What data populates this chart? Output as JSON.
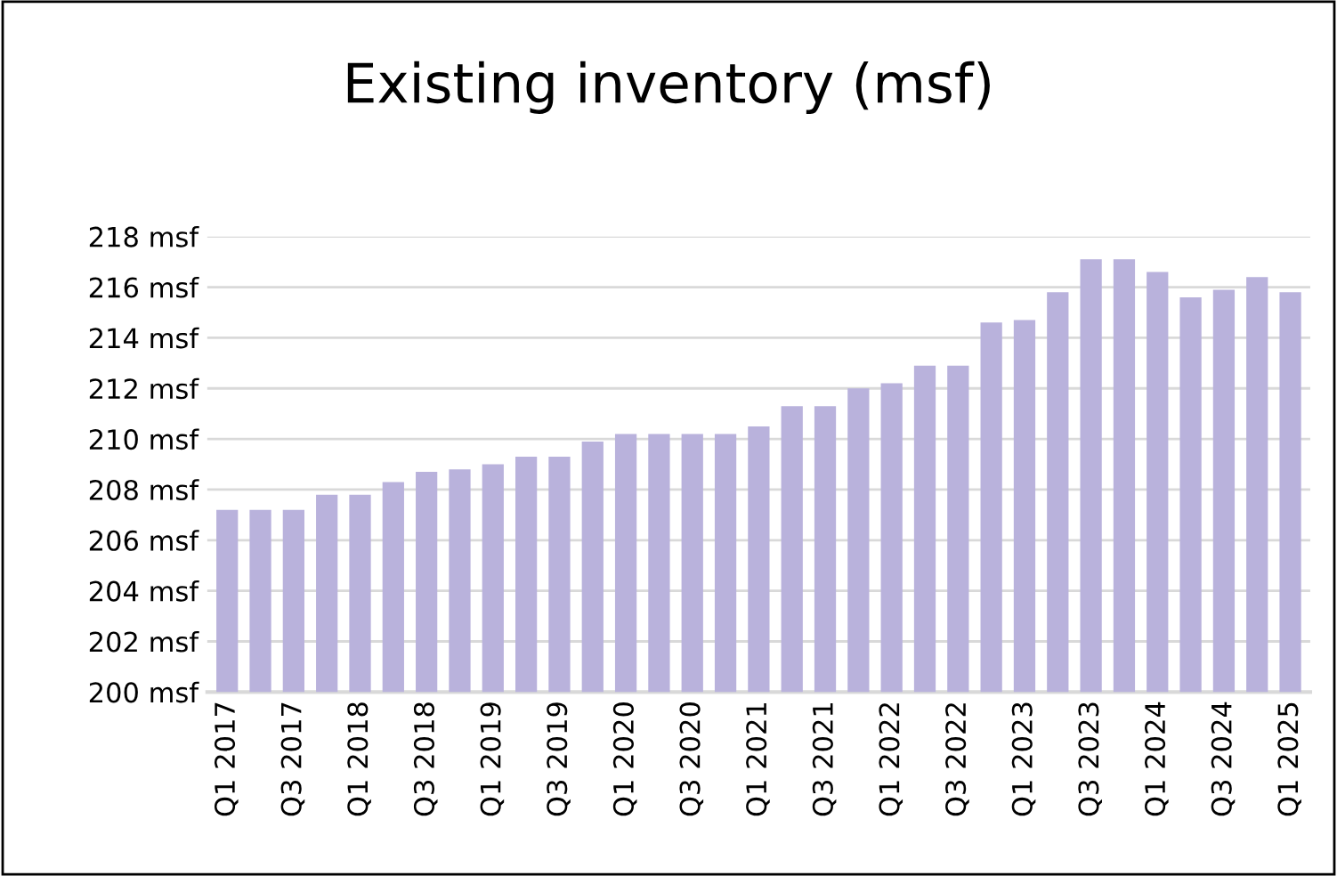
{
  "chart_data": {
    "type": "bar",
    "title": "Existing inventory (msf)",
    "categories": [
      "Q1 2017",
      null,
      "Q3 2017",
      null,
      "Q1 2018",
      null,
      "Q3 2018",
      null,
      "Q1 2019",
      null,
      "Q3 2019",
      null,
      "Q1 2020",
      null,
      "Q3 2020",
      null,
      "Q1 2021",
      null,
      "Q3 2021",
      null,
      "Q1 2022",
      null,
      "Q3 2022",
      null,
      "Q1 2023",
      null,
      "Q3 2023",
      null,
      "Q1 2024",
      null,
      "Q3 2024",
      null,
      "Q1 2025"
    ],
    "values": [
      207.2,
      207.2,
      207.2,
      207.8,
      207.8,
      208.3,
      208.7,
      208.8,
      209.0,
      209.3,
      209.3,
      209.9,
      210.2,
      210.2,
      210.2,
      210.2,
      210.5,
      211.3,
      211.3,
      212.0,
      212.2,
      212.9,
      212.9,
      214.6,
      214.7,
      215.8,
      217.1,
      217.1,
      216.6,
      215.6,
      215.9,
      216.4,
      215.8
    ],
    "color": "#b9b2dc",
    "ylim": [
      200,
      218
    ],
    "yticks": [
      {
        "value": 200,
        "label": "200 msf"
      },
      {
        "value": 202,
        "label": "202 msf"
      },
      {
        "value": 204,
        "label": "204 msf"
      },
      {
        "value": 206,
        "label": "206 msf"
      },
      {
        "value": 208,
        "label": "208 msf"
      },
      {
        "value": 210,
        "label": "210 msf"
      },
      {
        "value": 212,
        "label": "212 msf"
      },
      {
        "value": 214,
        "label": "214 msf"
      },
      {
        "value": 216,
        "label": "216 msf"
      },
      {
        "value": 218,
        "label": "218 msf"
      }
    ],
    "grid": "y"
  }
}
